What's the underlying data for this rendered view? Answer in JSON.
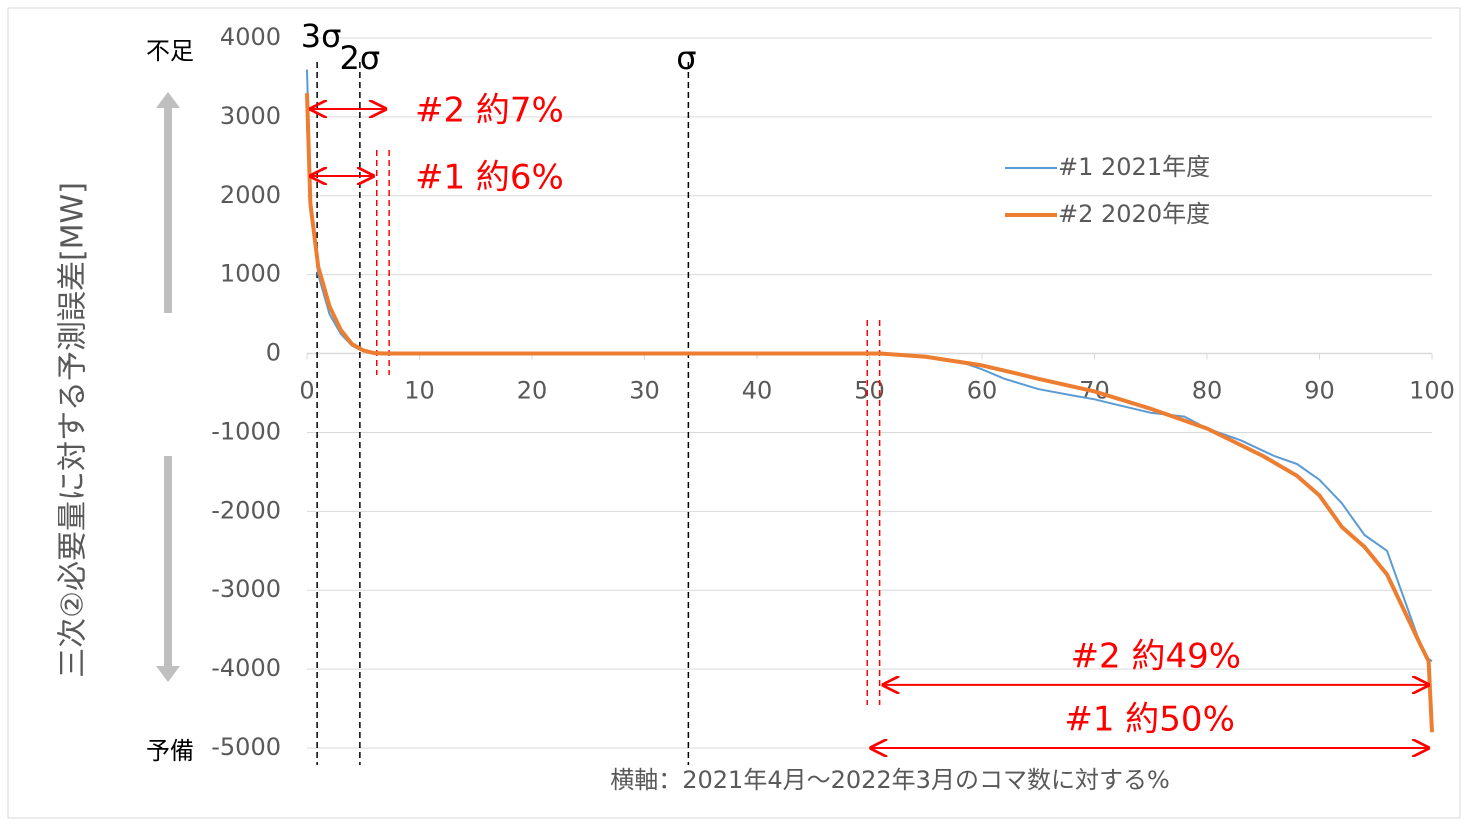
{
  "chart_data": {
    "type": "line",
    "y_label": "三次②必要量に対する予測誤差[MW]",
    "x_label": "横軸：2021年4月～2022年3月のコマ数に対する%",
    "y_top_note": "不足",
    "y_bottom_note": "予備",
    "xlim": [
      0,
      100
    ],
    "xticks": [
      0,
      10,
      20,
      30,
      40,
      50,
      60,
      70,
      80,
      90,
      100
    ],
    "ylim": [
      -5000,
      4000
    ],
    "yticks": [
      -5000,
      -4000,
      -3000,
      -2000,
      -1000,
      0,
      1000,
      2000,
      3000,
      4000
    ],
    "grid": true,
    "legend": "upper right",
    "series": [
      {
        "name": "#1 2021年度",
        "color": "#5b9bd5",
        "width": 2,
        "x": [
          0,
          0.3,
          1,
          2,
          3,
          4,
          5,
          6,
          50,
          52,
          55,
          58,
          60,
          62,
          65,
          68,
          70,
          72,
          75,
          78,
          80,
          83,
          86,
          88,
          90,
          92,
          94,
          96,
          97,
          98,
          99,
          99.5,
          100
        ],
        "values": [
          3600,
          2000,
          1000,
          500,
          250,
          100,
          30,
          0,
          0,
          -20,
          -50,
          -100,
          -200,
          -320,
          -450,
          -530,
          -580,
          -650,
          -750,
          -800,
          -950,
          -1100,
          -1300,
          -1400,
          -1600,
          -1900,
          -2300,
          -2500,
          -2900,
          -3300,
          -3700,
          -3850,
          -3900
        ]
      },
      {
        "name": "#2 2020年度",
        "color": "#ed7d31",
        "width": 4,
        "x": [
          0,
          0.3,
          1,
          2,
          3,
          4,
          5,
          6,
          7,
          51,
          55,
          60,
          63,
          65,
          70,
          75,
          80,
          85,
          88,
          90,
          92,
          94,
          96,
          98,
          99,
          99.7,
          100
        ],
        "values": [
          3300,
          1900,
          1100,
          600,
          300,
          120,
          40,
          5,
          0,
          0,
          -40,
          -150,
          -250,
          -320,
          -480,
          -700,
          -950,
          -1300,
          -1550,
          -1800,
          -2200,
          -2450,
          -2800,
          -3400,
          -3700,
          -3900,
          -4800
        ]
      }
    ],
    "vlines": [
      {
        "x": 0.9,
        "label": "3σ",
        "color": "#000"
      },
      {
        "x": 4.7,
        "label": "2σ",
        "color": "#000"
      },
      {
        "x": 33.9,
        "label": "σ",
        "color": "#000"
      },
      {
        "x": 6.2,
        "color": "#ff0000"
      },
      {
        "x": 7.3,
        "color": "#ff0000"
      },
      {
        "x": 49.8,
        "color": "#ff0000"
      },
      {
        "x": 50.9,
        "color": "#ff0000"
      }
    ],
    "arrows": [
      {
        "label": "#2 約7%",
        "x1": 0,
        "x2": 7.3,
        "y": 3100
      },
      {
        "label": "#1 約6%",
        "x1": 0,
        "x2": 6.2,
        "y": 2250
      },
      {
        "label": "#2 約49%",
        "x1": 50.9,
        "x2": 100,
        "y": -4200
      },
      {
        "label": "#1 約50%",
        "x1": 49.8,
        "x2": 100,
        "y": -5000
      }
    ]
  }
}
